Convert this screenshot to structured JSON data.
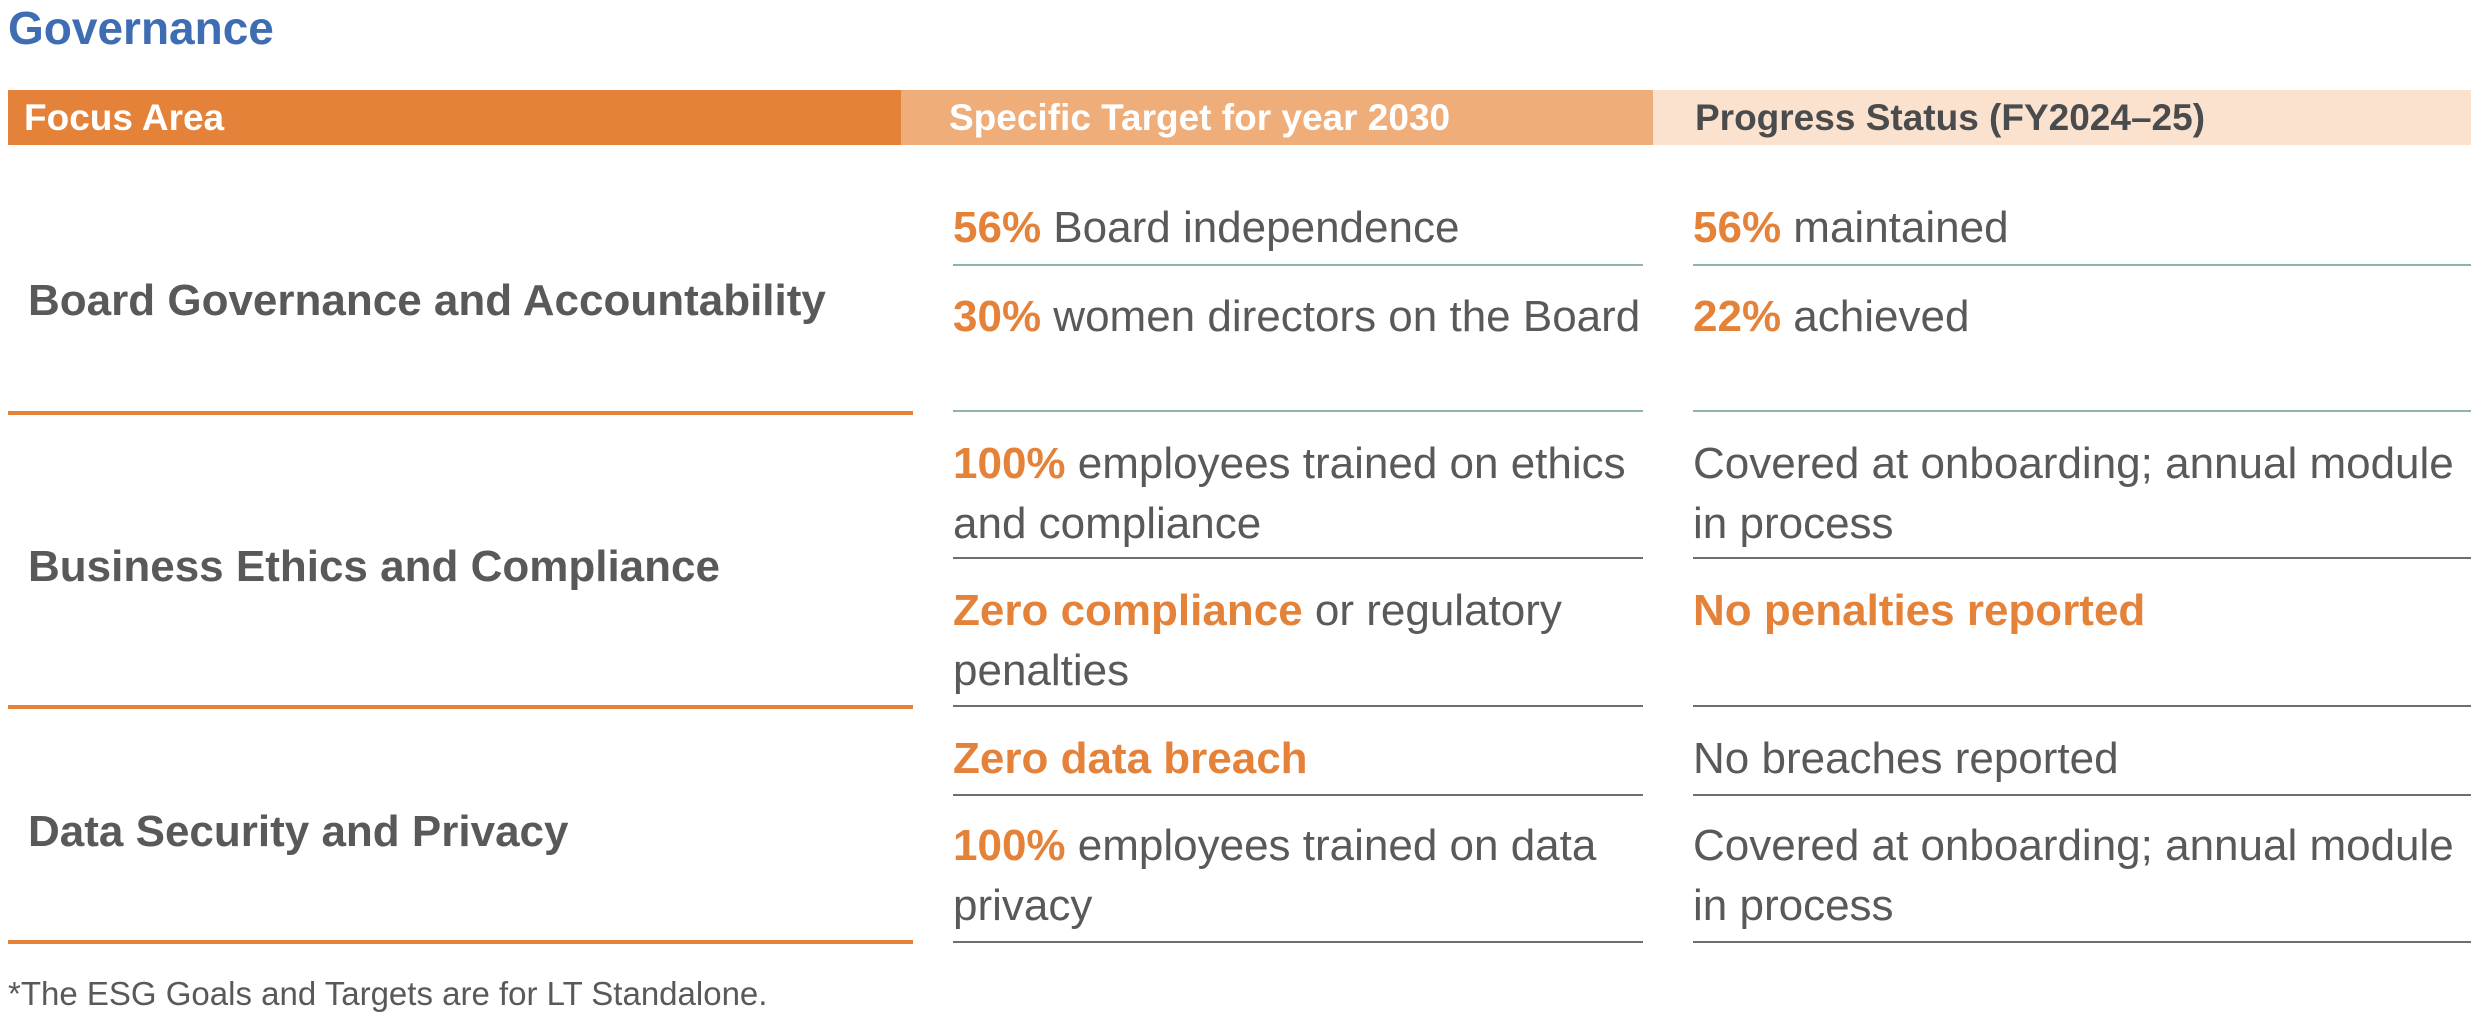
{
  "title": "Governance",
  "header": {
    "focus_area": "Focus Area",
    "target": "Specific Target for year 2030",
    "progress": "Progress Status (FY2024–25)"
  },
  "rows": [
    {
      "focus": "Board Governance and Accountability",
      "items": [
        {
          "target_hl": "56%",
          "target_rest": " Board independence",
          "progress_hl": "56%",
          "progress_rest": " maintained"
        },
        {
          "target_hl": "30%",
          "target_rest": " women directors on the Board",
          "progress_hl": "22%",
          "progress_rest": " achieved"
        }
      ]
    },
    {
      "focus": "Business Ethics and Compliance",
      "items": [
        {
          "target_hl": "100%",
          "target_rest": " employees trained on ethics and compliance",
          "progress_hl": "",
          "progress_rest": "Covered at onboarding; annual module in process"
        },
        {
          "target_hl": "Zero compliance",
          "target_rest": " or regulatory penalties",
          "progress_hl": "No penalties reported",
          "progress_rest": ""
        }
      ]
    },
    {
      "focus": "Data Security and Privacy",
      "items": [
        {
          "target_hl": "Zero data breach",
          "target_rest": "",
          "progress_hl": "",
          "progress_rest": "No breaches reported"
        },
        {
          "target_hl": "100%",
          "target_rest": " employees trained on data privacy",
          "progress_hl": "",
          "progress_rest": "Covered at onboarding; annual module in process"
        }
      ]
    }
  ],
  "footnote": "*The ESG Goals and Targets are for LT Standalone.",
  "colors": {
    "title_blue": "#3f6db3",
    "accent_orange": "#e5823a",
    "header_mid": "#efad7a",
    "header_light": "#fae2cf",
    "text_gray": "#58595b",
    "divider_green": "#8fb5a5",
    "divider_gray": "#6d6e70"
  }
}
